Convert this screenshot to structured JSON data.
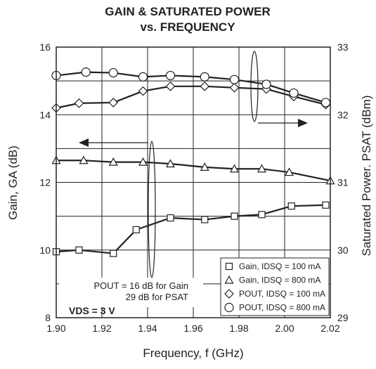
{
  "chart_data": {
    "type": "line",
    "title": "GAIN & SATURATED POWER",
    "subtitle": "vs. FREQUENCY",
    "xlabel": "Frequency, f (GHz)",
    "ylabel": "Gain, GA (dB)",
    "y2label": "Saturated Power. PSAT (dBm)",
    "xlim": [
      1.9,
      2.02
    ],
    "ylim": [
      8,
      16
    ],
    "y2lim": [
      29,
      33
    ],
    "xticks": [
      "1.90",
      "1.92",
      "1.94",
      "1.96",
      "1.98",
      "2.00",
      "2.02"
    ],
    "yticks": [
      "8",
      "10",
      "12",
      "14",
      "16"
    ],
    "y2ticks": [
      "29",
      "30",
      "31",
      "32",
      "33"
    ],
    "grid": true,
    "legend_position": "bottom-right",
    "series": [
      {
        "name": "Gain, IDSQ = 100 mA",
        "axis": "left",
        "marker": "square",
        "x": [
          1.9,
          1.91,
          1.925,
          1.935,
          1.95,
          1.965,
          1.978,
          1.99,
          2.003,
          2.018
        ],
        "y": [
          9.95,
          10.0,
          9.9,
          10.6,
          10.95,
          10.9,
          11.0,
          11.05,
          11.3,
          11.33
        ]
      },
      {
        "name": "Gain, IDSQ = 800 mA",
        "axis": "left",
        "marker": "triangle",
        "x": [
          1.9,
          1.912,
          1.925,
          1.938,
          1.95,
          1.965,
          1.978,
          1.99,
          2.002,
          2.02
        ],
        "y": [
          12.65,
          12.65,
          12.6,
          12.6,
          12.55,
          12.45,
          12.4,
          12.4,
          12.3,
          12.05
        ]
      },
      {
        "name": "POUT, IDSQ = 100 mA",
        "axis": "right",
        "marker": "diamond",
        "x": [
          1.9,
          1.91,
          1.925,
          1.938,
          1.95,
          1.965,
          1.978,
          1.992,
          2.004,
          2.018
        ],
        "y": [
          32.1,
          32.17,
          32.18,
          32.35,
          32.42,
          32.42,
          32.4,
          32.38,
          32.27,
          32.15
        ]
      },
      {
        "name": "POUT, IDSQ = 800 mA",
        "axis": "right",
        "marker": "circle",
        "x": [
          1.9,
          1.913,
          1.925,
          1.938,
          1.95,
          1.965,
          1.978,
          1.992,
          2.004,
          2.018
        ],
        "y": [
          32.58,
          32.63,
          32.62,
          32.56,
          32.58,
          32.56,
          32.52,
          32.45,
          32.32,
          32.18
        ]
      }
    ],
    "annotations": [
      "POUT = 16 dB for Gain",
      "29 dB for PSAT",
      "VDS = 3 V"
    ]
  }
}
